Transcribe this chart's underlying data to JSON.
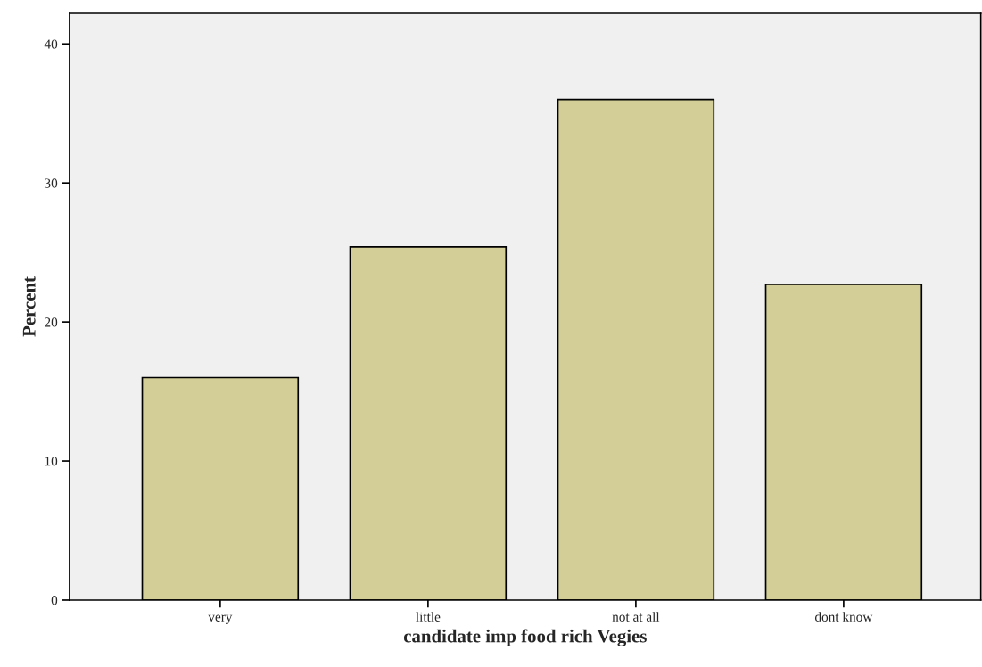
{
  "chart_data": {
    "type": "bar",
    "xlabel": "candidate imp food rich Vegies",
    "ylabel": "Percent",
    "categories": [
      "very",
      "little",
      "not at all",
      "dont know"
    ],
    "values": [
      16.0,
      25.4,
      36.0,
      22.7
    ],
    "color": "#d3ce97",
    "ylim": [
      0,
      42.2
    ],
    "yticks": [
      0,
      10,
      20,
      30,
      40
    ],
    "grid": false,
    "legend": false
  }
}
